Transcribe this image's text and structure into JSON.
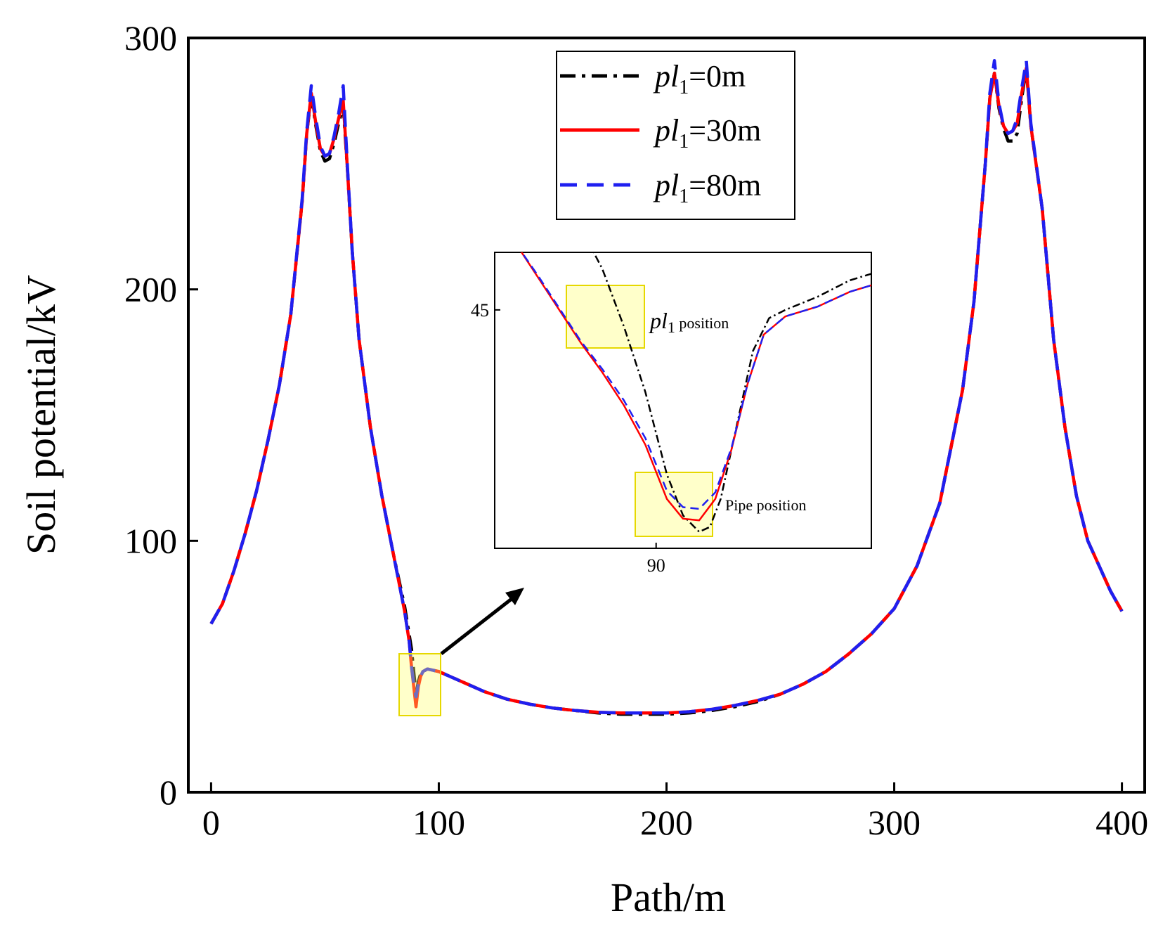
{
  "chart_data": {
    "type": "line",
    "xlabel": "Path/m",
    "ylabel": "Soil potential/kV",
    "xlim": [
      -10,
      410
    ],
    "ylim": [
      0,
      300
    ],
    "x_ticks": [
      0,
      100,
      200,
      300,
      400
    ],
    "y_ticks": [
      0,
      100,
      200,
      300
    ],
    "legend_position": "top-center",
    "series": [
      {
        "name": "pl1=0m",
        "legend_main": "pl",
        "legend_sub": "1",
        "legend_rest": "=0m",
        "color": "#000000",
        "style": "dash-dot",
        "x": [
          0,
          5,
          10,
          15,
          20,
          25,
          30,
          35,
          40,
          42,
          44,
          46,
          48,
          50,
          52,
          54,
          56,
          58,
          60,
          62,
          65,
          70,
          75,
          80,
          85,
          88,
          89,
          90,
          91,
          92,
          93,
          95,
          100,
          110,
          120,
          130,
          140,
          150,
          160,
          170,
          180,
          190,
          200,
          210,
          220,
          230,
          240,
          250,
          260,
          270,
          280,
          290,
          300,
          310,
          320,
          330,
          335,
          340,
          342,
          344,
          346,
          348,
          350,
          352,
          354,
          356,
          358,
          360,
          365,
          370,
          375,
          380,
          385,
          390,
          395,
          400
        ],
        "y": [
          67,
          75,
          88,
          103,
          120,
          140,
          162,
          190,
          235,
          262,
          277,
          265,
          255,
          251,
          252,
          258,
          266,
          273,
          246,
          215,
          180,
          145,
          118,
          95,
          74,
          57,
          48,
          39,
          44,
          47,
          48,
          49,
          48,
          44,
          40,
          37,
          35,
          33.5,
          32.5,
          31.5,
          31,
          31,
          31,
          31.5,
          32.5,
          34,
          36,
          39,
          43,
          48,
          55,
          63,
          73,
          90,
          115,
          160,
          195,
          250,
          276,
          286,
          272,
          264,
          259,
          259,
          262,
          276,
          288,
          265,
          232,
          180,
          145,
          118,
          100,
          90,
          80,
          72
        ]
      },
      {
        "name": "pl1=30m",
        "legend_main": "pl",
        "legend_sub": "1",
        "legend_rest": "=30m",
        "color": "#ff0000",
        "style": "solid",
        "x": [
          0,
          5,
          10,
          15,
          20,
          25,
          30,
          35,
          40,
          42,
          44,
          46,
          48,
          50,
          52,
          54,
          56,
          58,
          60,
          62,
          65,
          70,
          75,
          80,
          85,
          87,
          88,
          89,
          90,
          91,
          92,
          93,
          95,
          100,
          110,
          120,
          130,
          140,
          150,
          160,
          170,
          180,
          190,
          200,
          210,
          220,
          230,
          240,
          250,
          260,
          270,
          280,
          290,
          300,
          310,
          320,
          330,
          335,
          340,
          342,
          344,
          346,
          348,
          350,
          352,
          354,
          356,
          358,
          360,
          365,
          370,
          375,
          380,
          385,
          390,
          395,
          400
        ],
        "y": [
          67,
          75,
          88,
          103,
          120,
          140,
          162,
          190,
          235,
          262,
          278,
          266,
          256,
          253,
          254,
          260,
          268,
          275,
          246,
          215,
          180,
          145,
          118,
          95,
          72,
          60,
          50,
          42,
          34,
          42,
          46,
          48,
          49,
          48,
          44,
          40,
          37,
          35,
          33.5,
          32.5,
          31.8,
          31.5,
          31.5,
          31.5,
          32,
          33,
          34.5,
          36.5,
          39,
          43,
          48,
          55,
          63,
          73,
          90,
          115,
          160,
          195,
          250,
          276,
          286,
          273,
          265,
          262,
          263,
          266,
          278,
          288,
          265,
          232,
          180,
          145,
          118,
          100,
          90,
          80,
          72
        ]
      },
      {
        "name": "pl1=80m",
        "legend_main": "pl",
        "legend_sub": "1",
        "legend_rest": "=80m",
        "color": "#1f1ff0",
        "style": "dashed",
        "x": [
          0,
          5,
          10,
          15,
          20,
          25,
          30,
          35,
          40,
          42,
          44,
          46,
          48,
          50,
          52,
          54,
          56,
          58,
          60,
          62,
          65,
          70,
          75,
          80,
          85,
          87,
          88,
          89,
          90,
          91,
          92,
          93,
          95,
          100,
          110,
          120,
          130,
          140,
          150,
          160,
          170,
          180,
          190,
          200,
          210,
          220,
          230,
          240,
          250,
          260,
          270,
          280,
          290,
          300,
          310,
          320,
          330,
          335,
          340,
          342,
          344,
          346,
          348,
          350,
          352,
          354,
          356,
          358,
          360,
          365,
          370,
          375,
          380,
          385,
          390,
          395,
          400
        ],
        "y": [
          67,
          75,
          88,
          103,
          120,
          140,
          162,
          190,
          236,
          263,
          281,
          268,
          257,
          253,
          254,
          261,
          270,
          281,
          247,
          215,
          180,
          145,
          118,
          95,
          72,
          60,
          50,
          43,
          38,
          43,
          46,
          48,
          49,
          48,
          44,
          40,
          37,
          35,
          33.5,
          32.5,
          31.8,
          31.5,
          31.5,
          31.5,
          32,
          33,
          34.5,
          36.5,
          39,
          43,
          48,
          55,
          63,
          73,
          90,
          115,
          160,
          195,
          250,
          278,
          291,
          274,
          265,
          262,
          263,
          268,
          280,
          291,
          266,
          232,
          180,
          145,
          118,
          100,
          90,
          80,
          72
        ]
      }
    ],
    "inset": {
      "x_ticks": [
        90
      ],
      "y_ticks": [
        45
      ],
      "xlim": [
        88.5,
        92
      ],
      "ylim": [
        30.5,
        48.5
      ],
      "annotation_top_main": "pl",
      "annotation_top_sub": "1",
      "annotation_top_rest": " position",
      "annotation_bottom": "Pipe position",
      "series": [
        {
          "name": "pl1=0m",
          "color": "#000000",
          "style": "dash-dot",
          "x": [
            89.3,
            89.5,
            89.7,
            89.9,
            90.1,
            90.25,
            90.4,
            90.5,
            90.6,
            90.75,
            90.9,
            91.05,
            91.2,
            91.5,
            91.8,
            92.0
          ],
          "y": [
            50.0,
            47.5,
            44.0,
            40.0,
            35.0,
            32.5,
            31.5,
            31.8,
            33.5,
            38.0,
            42.5,
            44.5,
            45.0,
            45.8,
            46.8,
            47.2
          ]
        },
        {
          "name": "pl1=30m",
          "color": "#ff0000",
          "style": "solid",
          "x": [
            88.7,
            88.9,
            89.1,
            89.3,
            89.5,
            89.7,
            89.9,
            90.1,
            90.25,
            90.4,
            90.55,
            90.7,
            90.85,
            91.0,
            91.2,
            91.5,
            91.8,
            92.0
          ],
          "y": [
            49.0,
            47.0,
            45.0,
            43.0,
            41.2,
            39.2,
            36.8,
            33.5,
            32.3,
            32.2,
            33.5,
            36.5,
            40.5,
            43.5,
            44.6,
            45.2,
            46.1,
            46.5
          ]
        },
        {
          "name": "pl1=80m",
          "color": "#1f1ff0",
          "style": "dashed",
          "x": [
            88.7,
            88.9,
            89.1,
            89.3,
            89.5,
            89.7,
            89.9,
            90.1,
            90.25,
            90.4,
            90.55,
            90.7,
            90.85,
            91.0,
            91.2,
            91.5,
            91.8,
            92.0
          ],
          "y": [
            49.0,
            47.1,
            45.1,
            43.1,
            41.4,
            39.5,
            37.2,
            34.0,
            33.0,
            32.9,
            33.9,
            36.6,
            40.5,
            43.5,
            44.6,
            45.2,
            46.1,
            46.5
          ]
        }
      ]
    }
  }
}
